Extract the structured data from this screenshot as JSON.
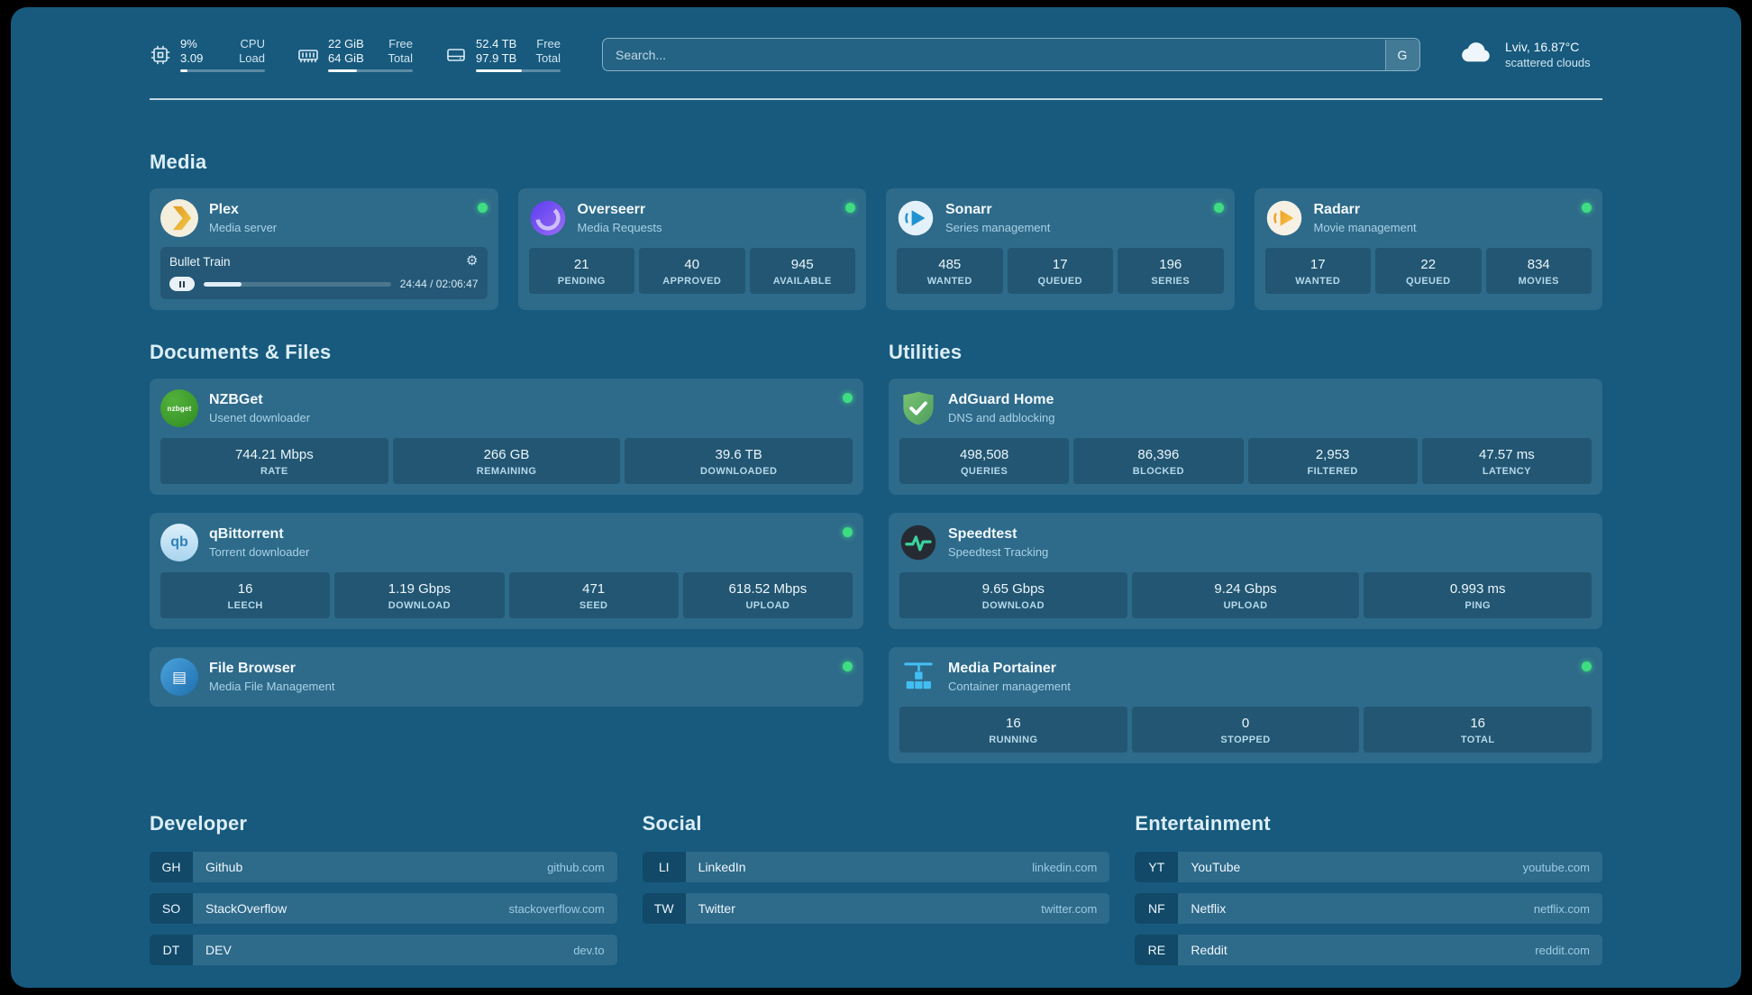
{
  "icons": {
    "gear": "⚙",
    "filebrowser_glyph": "▤"
  },
  "colors": {
    "background": "#175a7d",
    "status_online": "#3fdd82",
    "plex_orange": "#e9a31d",
    "overseerr_purple": "#7c5cf0",
    "sonarr_blue": "#2193d1",
    "radarr_orange": "#f2a93b",
    "nzbget_green": "#3da02e",
    "qbittorrent_blue": "#2e7fb8",
    "filebrowser_blue": "#2f93d5",
    "adguard_green": "#5fae66",
    "speedtest_green": "#3ad29f",
    "portainer_blue": "#42bdf2"
  },
  "topbar": {
    "resources": [
      {
        "icon": "cpu-icon",
        "percent": 9,
        "rows": [
          {
            "value": "9%",
            "label": "CPU"
          },
          {
            "value": "3.09",
            "label": "Load"
          }
        ]
      },
      {
        "icon": "memory-icon",
        "percent": 34,
        "rows": [
          {
            "value": "22 GiB",
            "label": "Free"
          },
          {
            "value": "64 GiB",
            "label": "Total"
          }
        ]
      },
      {
        "icon": "disk-icon",
        "percent": 54,
        "rows": [
          {
            "value": "52.4 TB",
            "label": "Free"
          },
          {
            "value": "97.9 TB",
            "label": "Total"
          }
        ]
      }
    ],
    "search": {
      "placeholder": "Search...",
      "provider_button": "G"
    },
    "weather": {
      "location_temp": "Lviv, 16.87°C",
      "condition": "scattered clouds"
    }
  },
  "groups": {
    "media": {
      "title": "Media",
      "services": [
        {
          "name": "Plex",
          "subtitle": "Media server",
          "online": true,
          "icon": "plex-icon",
          "now_playing": {
            "title": "Bullet Train",
            "time": "24:44 / 02:06:47",
            "percent": 20
          }
        },
        {
          "name": "Overseerr",
          "subtitle": "Media Requests",
          "online": true,
          "icon": "overseerr-icon",
          "stats": [
            {
              "value": "21",
              "label": "PENDING"
            },
            {
              "value": "40",
              "label": "APPROVED"
            },
            {
              "value": "945",
              "label": "AVAILABLE"
            }
          ]
        },
        {
          "name": "Sonarr",
          "subtitle": "Series management",
          "online": true,
          "icon": "sonarr-icon",
          "stats": [
            {
              "value": "485",
              "label": "WANTED"
            },
            {
              "value": "17",
              "label": "QUEUED"
            },
            {
              "value": "196",
              "label": "SERIES"
            }
          ]
        },
        {
          "name": "Radarr",
          "subtitle": "Movie management",
          "online": true,
          "icon": "radarr-icon",
          "stats": [
            {
              "value": "17",
              "label": "WANTED"
            },
            {
              "value": "22",
              "label": "QUEUED"
            },
            {
              "value": "834",
              "label": "MOVIES"
            }
          ]
        }
      ]
    },
    "documents": {
      "title": "Documents & Files",
      "services": [
        {
          "name": "NZBGet",
          "subtitle": "Usenet downloader",
          "online": true,
          "icon": "nzbget-icon",
          "stats": [
            {
              "value": "744.21 Mbps",
              "label": "RATE"
            },
            {
              "value": "266 GB",
              "label": "REMAINING"
            },
            {
              "value": "39.6 TB",
              "label": "DOWNLOADED"
            }
          ]
        },
        {
          "name": "qBittorrent",
          "subtitle": "Torrent downloader",
          "online": true,
          "icon": "qbittorrent-icon",
          "stats": [
            {
              "value": "16",
              "label": "LEECH"
            },
            {
              "value": "1.19 Gbps",
              "label": "DOWNLOAD"
            },
            {
              "value": "471",
              "label": "SEED"
            },
            {
              "value": "618.52 Mbps",
              "label": "UPLOAD"
            }
          ]
        },
        {
          "name": "File Browser",
          "subtitle": "Media File Management",
          "online": true,
          "icon": "filebrowser-icon"
        }
      ]
    },
    "utilities": {
      "title": "Utilities",
      "services": [
        {
          "name": "AdGuard Home",
          "subtitle": "DNS and adblocking",
          "online": false,
          "icon": "adguard-icon",
          "stats": [
            {
              "value": "498,508",
              "label": "QUERIES"
            },
            {
              "value": "86,396",
              "label": "BLOCKED"
            },
            {
              "value": "2,953",
              "label": "FILTERED"
            },
            {
              "value": "47.57 ms",
              "label": "LATENCY"
            }
          ]
        },
        {
          "name": "Speedtest",
          "subtitle": "Speedtest Tracking",
          "online": false,
          "icon": "speedtest-icon",
          "stats": [
            {
              "value": "9.65 Gbps",
              "label": "DOWNLOAD"
            },
            {
              "value": "9.24 Gbps",
              "label": "UPLOAD"
            },
            {
              "value": "0.993 ms",
              "label": "PING"
            }
          ]
        },
        {
          "name": "Media Portainer",
          "subtitle": "Container management",
          "online": true,
          "icon": "portainer-icon",
          "stats": [
            {
              "value": "16",
              "label": "RUNNING"
            },
            {
              "value": "0",
              "label": "STOPPED"
            },
            {
              "value": "16",
              "label": "TOTAL"
            }
          ]
        }
      ]
    }
  },
  "bookmarks": [
    {
      "title": "Developer",
      "items": [
        {
          "abbr": "GH",
          "name": "Github",
          "url": "github.com"
        },
        {
          "abbr": "SO",
          "name": "StackOverflow",
          "url": "stackoverflow.com"
        },
        {
          "abbr": "DT",
          "name": "DEV",
          "url": "dev.to"
        }
      ]
    },
    {
      "title": "Social",
      "items": [
        {
          "abbr": "LI",
          "name": "LinkedIn",
          "url": "linkedin.com"
        },
        {
          "abbr": "TW",
          "name": "Twitter",
          "url": "twitter.com"
        }
      ]
    },
    {
      "title": "Entertainment",
      "items": [
        {
          "abbr": "YT",
          "name": "YouTube",
          "url": "youtube.com"
        },
        {
          "abbr": "NF",
          "name": "Netflix",
          "url": "netflix.com"
        },
        {
          "abbr": "RE",
          "name": "Reddit",
          "url": "reddit.com"
        }
      ]
    }
  ]
}
